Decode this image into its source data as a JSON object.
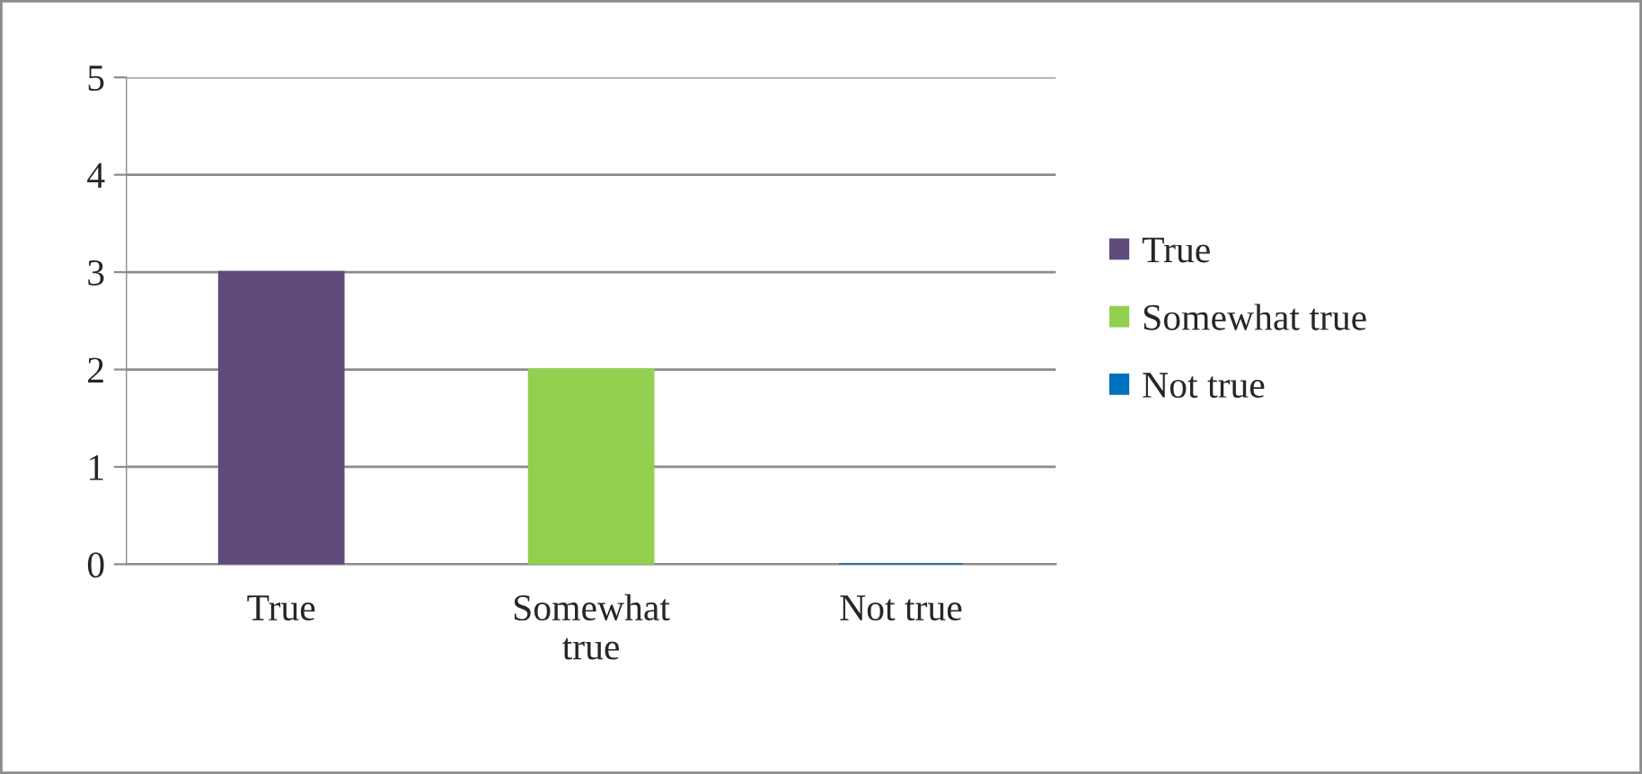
{
  "chart_data": {
    "type": "bar",
    "categories": [
      "True",
      "Somewhat\ntrue",
      "Not true"
    ],
    "series": [
      {
        "name": "True",
        "color": "#604a7b",
        "values": [
          3,
          null,
          null
        ]
      },
      {
        "name": "Somewhat true",
        "color": "#92d050",
        "values": [
          null,
          2,
          null
        ]
      },
      {
        "name": "Not true",
        "color": "#0070c0",
        "values": [
          null,
          null,
          0
        ]
      }
    ],
    "ylim": [
      0,
      5
    ],
    "yticks": [
      0,
      1,
      2,
      3,
      4,
      5
    ],
    "grid": "y",
    "legend": "right"
  }
}
